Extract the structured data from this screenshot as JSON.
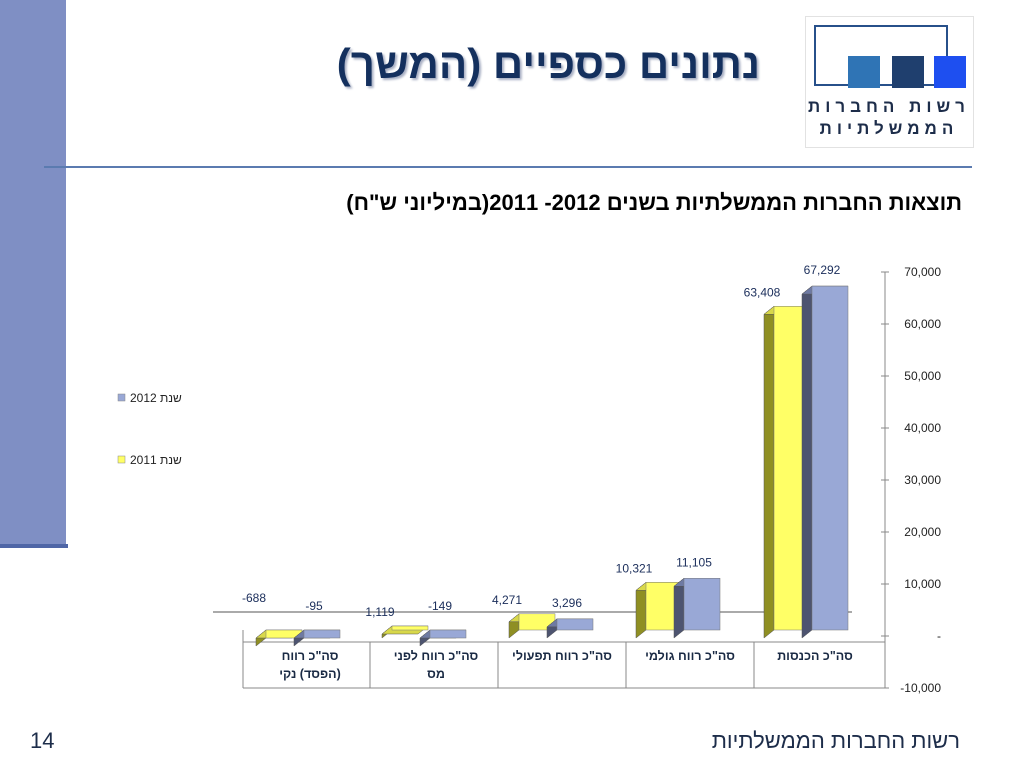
{
  "slide": {
    "title": "נתונים כספיים (המשך)",
    "subtitle": "תוצאות החברות הממשלתיות בשנים 2012- 2011(במיליוני ש\"ח)",
    "footer": "רשות החברות הממשלתיות",
    "page_number": "14"
  },
  "logo": {
    "line1": "רשות החברות",
    "line2": "הממשלתיות",
    "colors": [
      "#2f74b5",
      "#1f3f6e",
      "#1e4ff0"
    ]
  },
  "chart_data": {
    "type": "bar",
    "categories": [
      {
        "lines": [
          "סה\"כ הכנסות"
        ]
      },
      {
        "lines": [
          "סה\"כ רווח גולמי"
        ]
      },
      {
        "lines": [
          "סה\"כ רווח תפעולי"
        ]
      },
      {
        "lines": [
          "סה\"כ רווח לפני",
          "מס"
        ]
      },
      {
        "lines": [
          "סה\"כ רווח",
          "(הפסד) נקי"
        ]
      }
    ],
    "series": [
      {
        "name": "שנת 2011",
        "values": [
          63408,
          10321,
          4271,
          1119,
          -688
        ],
        "labels": [
          "63,408",
          "10,321",
          "4,271",
          "1,119",
          "-688"
        ],
        "color": "#ffff66",
        "side_color": "#8f8f23",
        "top_color": "#d8d84a"
      },
      {
        "name": "שנת 2012",
        "values": [
          67292,
          11105,
          3296,
          -149,
          -95
        ],
        "labels": [
          "67,292",
          "11,105",
          "3,296",
          "-149",
          "-95"
        ],
        "color": "#99a8d6",
        "side_color": "#4d5470",
        "top_color": "#6e7aa3"
      }
    ],
    "y_ticks": [
      {
        "value": 70000,
        "label": "70,000"
      },
      {
        "value": 60000,
        "label": "60,000"
      },
      {
        "value": 50000,
        "label": "50,000"
      },
      {
        "value": 40000,
        "label": "40,000"
      },
      {
        "value": 30000,
        "label": "30,000"
      },
      {
        "value": 20000,
        "label": "20,000"
      },
      {
        "value": 10000,
        "label": "10,000"
      },
      {
        "value": 0,
        "label": "-"
      },
      {
        "value": -10000,
        "label": "-10,000"
      }
    ],
    "ylim": [
      -10000,
      70000
    ],
    "y_axis_side": "right",
    "legend_position": "left",
    "grid": false
  }
}
